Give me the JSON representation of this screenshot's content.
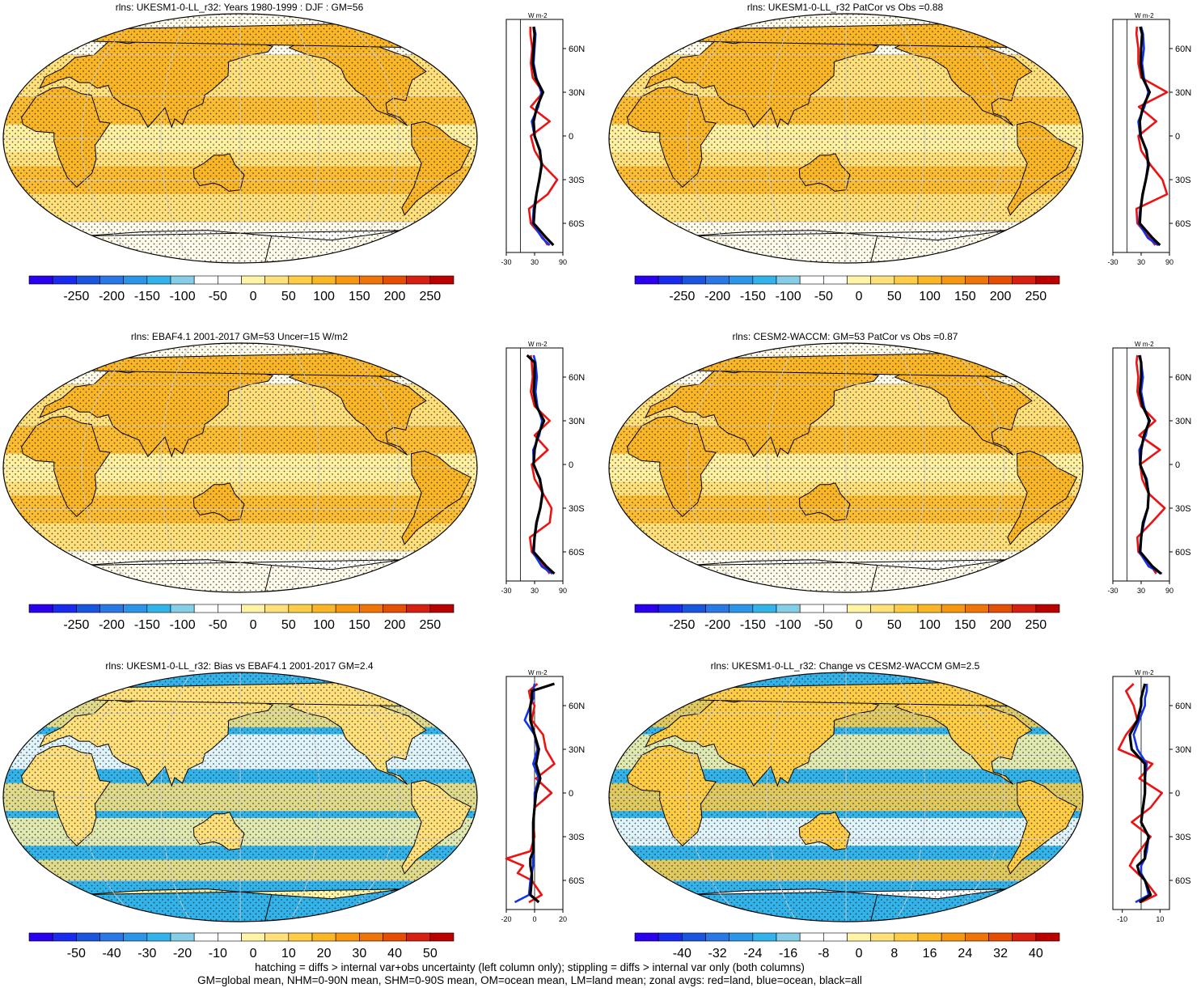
{
  "footer": {
    "line1": "hatching = diffs > internal var+obs uncertainty (left column only); stippling = diffs > internal var only (both columns)",
    "line2": "GM=global mean, NHM=0-90N mean, SHM=0-90S mean, OM=ocean mean, LM=land mean; zonal avgs: red=land, blue=ocean, black=all"
  },
  "colors": {
    "land": "#ee1111",
    "ocean": "#1133ee",
    "all": "#000000",
    "scale": [
      "#2a00ee",
      "#1a2aee",
      "#1955dd",
      "#2a78e6",
      "#2d95e8",
      "#32b3ea",
      "#86cde8",
      "#ffffff",
      "#ffffff",
      "#fff3a6",
      "#ffe07a",
      "#ffcd45",
      "#fbb626",
      "#f79710",
      "#f07408",
      "#e64e04",
      "#d82010",
      "#bb0000"
    ]
  },
  "chart_data": [
    {
      "type": "heatmap",
      "title": "rlns: UKESM1-0-LL_r32: Years 1980-1999 : DJF : GM=56",
      "colorbar_ticks": [
        "-250",
        "-200",
        "-150",
        "-100",
        "-50",
        "0",
        "50",
        "100",
        "150",
        "200",
        "250"
      ],
      "map_style": "clim",
      "profile": {
        "unit": "W m-2",
        "xlim": [
          -30,
          90
        ],
        "xticks": [
          "-30",
          "30",
          "90"
        ],
        "ylim": [
          -80,
          80
        ],
        "yticks": [
          "60N",
          "30N",
          "0",
          "30S",
          "60S"
        ],
        "lat": [
          -75,
          -70,
          -60,
          -50,
          -40,
          -30,
          -20,
          -10,
          0,
          10,
          20,
          30,
          40,
          50,
          60,
          70,
          75
        ],
        "series": [
          {
            "name": "land",
            "values": [
              58,
              48,
              22,
              18,
              58,
              78,
              48,
              30,
              22,
              62,
              22,
              48,
              26,
              22,
              25,
              21,
              21
            ]
          },
          {
            "name": "ocean",
            "values": [
              62,
              46,
              26,
              28,
              34,
              40,
              44,
              42,
              30,
              24,
              38,
              44,
              34,
              28,
              30,
              32,
              29
            ]
          },
          {
            "name": "all",
            "values": [
              70,
              55,
              28,
              30,
              34,
              40,
              45,
              41,
              30,
              28,
              35,
              48,
              32,
              26,
              28,
              30,
              28
            ]
          }
        ]
      }
    },
    {
      "type": "heatmap",
      "title": "rlns: UKESM1-0-LL_r32 PatCor vs Obs =0.88",
      "colorbar_ticks": [
        "-250",
        "-200",
        "-150",
        "-100",
        "-50",
        "0",
        "50",
        "100",
        "150",
        "200",
        "250"
      ],
      "map_style": "clim",
      "profile": {
        "unit": "W m-2",
        "xlim": [
          -30,
          90
        ],
        "xticks": [
          "-30",
          "30",
          "90"
        ],
        "ylim": [
          -80,
          80
        ],
        "yticks": [
          "60N",
          "30N",
          "0",
          "30S",
          "60S"
        ],
        "lat": [
          -75,
          -70,
          -60,
          -50,
          -40,
          -30,
          -20,
          -10,
          0,
          10,
          20,
          30,
          40,
          50,
          60,
          70,
          75
        ],
        "series": [
          {
            "name": "land",
            "values": [
              60,
              48,
              22,
              20,
              85,
              75,
              50,
              30,
              24,
              62,
              25,
              85,
              30,
              24,
              24,
              20,
              21
            ]
          },
          {
            "name": "ocean",
            "values": [
              66,
              44,
              25,
              28,
              34,
              40,
              44,
              42,
              28,
              24,
              37,
              45,
              36,
              32,
              36,
              34,
              30
            ]
          },
          {
            "name": "all",
            "values": [
              70,
              54,
              27,
              29,
              33,
              40,
              46,
              41,
              29,
              27,
              34,
              48,
              33,
              29,
              30,
              32,
              28
            ]
          }
        ]
      }
    },
    {
      "type": "heatmap",
      "title": "rlns: EBAF4.1 2001-2017 GM=53 Uncer=15 W/m2",
      "colorbar_ticks": [
        "-250",
        "-200",
        "-150",
        "-100",
        "-50",
        "0",
        "50",
        "100",
        "150",
        "200",
        "250"
      ],
      "map_style": "clim",
      "profile": {
        "unit": "W m-2",
        "xlim": [
          -30,
          90
        ],
        "xticks": [
          "-30",
          "30",
          "90"
        ],
        "ylim": [
          -80,
          80
        ],
        "yticks": [
          "60N",
          "30N",
          "0",
          "30S",
          "60S"
        ],
        "lat": [
          -75,
          -70,
          -60,
          -50,
          -40,
          -30,
          -20,
          -10,
          0,
          10,
          20,
          30,
          40,
          50,
          60,
          70,
          75
        ],
        "series": [
          {
            "name": "land",
            "values": [
              62,
              50,
              24,
              20,
              62,
              66,
              48,
              30,
              24,
              58,
              30,
              62,
              30,
              22,
              26,
              24,
              22
            ]
          },
          {
            "name": "ocean",
            "values": [
              68,
              45,
              26,
              30,
              35,
              42,
              46,
              42,
              28,
              27,
              40,
              46,
              36,
              32,
              35,
              32,
              28
            ]
          },
          {
            "name": "all",
            "values": [
              72,
              55,
              28,
              30,
              34,
              42,
              47,
              41,
              28,
              30,
              37,
              50,
              34,
              28,
              30,
              30,
              14
            ]
          }
        ]
      }
    },
    {
      "type": "heatmap",
      "title": "rlns: CESM2-WACCM: GM=53 PatCor vs Obs =0.87",
      "colorbar_ticks": [
        "-250",
        "-200",
        "-150",
        "-100",
        "-50",
        "0",
        "50",
        "100",
        "150",
        "200",
        "250"
      ],
      "map_style": "clim",
      "profile": {
        "unit": "W m-2",
        "xlim": [
          -30,
          90
        ],
        "xticks": [
          "-30",
          "30",
          "90"
        ],
        "ylim": [
          -80,
          80
        ],
        "yticks": [
          "60N",
          "30N",
          "0",
          "30S",
          "60S"
        ],
        "lat": [
          -75,
          -70,
          -60,
          -50,
          -40,
          -30,
          -20,
          -10,
          0,
          10,
          20,
          30,
          40,
          50,
          60,
          70,
          75
        ],
        "series": [
          {
            "name": "land",
            "values": [
              62,
              52,
              24,
              22,
              52,
              80,
              46,
              32,
              28,
              70,
              26,
              60,
              30,
              22,
              24,
              20,
              22
            ]
          },
          {
            "name": "ocean",
            "values": [
              74,
              46,
              26,
              30,
              36,
              44,
              46,
              42,
              28,
              26,
              40,
              46,
              36,
              30,
              34,
              30,
              28
            ]
          },
          {
            "name": "all",
            "values": [
              72,
              54,
              28,
              30,
              34,
              44,
              46,
              40,
              28,
              30,
              36,
              48,
              33,
              27,
              30,
              30,
              26
            ]
          }
        ]
      }
    },
    {
      "type": "heatmap",
      "title": "rlns: UKESM1-0-LL_r32: Bias vs EBAF4.1 2001-2017 GM=2.4",
      "colorbar_ticks": [
        "-50",
        "-40",
        "-30",
        "-20",
        "-10",
        "0",
        "10",
        "20",
        "30",
        "40",
        "50"
      ],
      "map_style": "bias",
      "profile": {
        "unit": "W m-2",
        "xlim": [
          -20,
          20
        ],
        "xticks": [
          "-20",
          "0",
          "20"
        ],
        "ylim": [
          -80,
          80
        ],
        "yticks": [
          "60N",
          "30N",
          "0",
          "30S",
          "60S"
        ],
        "lat": [
          -75,
          -70,
          -60,
          -55,
          -50,
          -45,
          -40,
          -30,
          -20,
          -10,
          0,
          10,
          20,
          30,
          40,
          50,
          60,
          65,
          70,
          75
        ],
        "series": [
          {
            "name": "land",
            "values": [
              -4,
              5,
              -2,
              -12,
              -8,
              -20,
              -3,
              0,
              -1,
              0,
              12,
              1,
              14,
              8,
              6,
              -2,
              0,
              -3,
              -4,
              2
            ]
          },
          {
            "name": "ocean",
            "values": [
              -14,
              -4,
              -3,
              -2,
              -1,
              -1,
              -1,
              -1,
              -1,
              0,
              0,
              3,
              -1,
              2,
              0,
              -7,
              -3,
              -1,
              -1,
              0
            ]
          },
          {
            "name": "all",
            "values": [
              3,
              -3,
              -2,
              -2,
              -3,
              -3,
              -1,
              -1,
              -1,
              0,
              1,
              4,
              1,
              3,
              0,
              -3,
              -3,
              -2,
              -2,
              14
            ]
          }
        ]
      }
    },
    {
      "type": "heatmap",
      "title": "rlns: UKESM1-0-LL_r32: Change vs CESM2-WACCM GM=2.5",
      "colorbar_ticks": [
        "-40",
        "-32",
        "-24",
        "-16",
        "-8",
        "0",
        "8",
        "16",
        "24",
        "32",
        "40"
      ],
      "map_style": "change",
      "profile": {
        "unit": "W m-2",
        "xlim": [
          -15,
          15
        ],
        "xticks": [
          "-10",
          "10"
        ],
        "ylim": [
          -80,
          80
        ],
        "yticks": [
          "60N",
          "30N",
          "0",
          "30S",
          "60S"
        ],
        "lat": [
          -75,
          -70,
          -60,
          -55,
          -50,
          -45,
          -40,
          -30,
          -20,
          -10,
          0,
          10,
          20,
          30,
          40,
          50,
          60,
          65,
          70,
          75
        ],
        "series": [
          {
            "name": "land",
            "values": [
              0,
              8,
              2,
              -2,
              -6,
              -4,
              -1,
              5,
              -5,
              5,
              11,
              -1,
              6,
              -12,
              -8,
              -2,
              -4,
              -6,
              -8,
              -4
            ],
            "x_end_note": ""
          },
          {
            "name": "ocean",
            "values": [
              -3,
              4,
              2,
              0,
              0,
              2,
              3,
              4,
              0,
              1,
              2,
              2,
              3,
              -2,
              -4,
              -1,
              2,
              2,
              3,
              3
            ]
          },
          {
            "name": "all",
            "values": [
              -1,
              5,
              2,
              -1,
              -2,
              2,
              2,
              4,
              0,
              1,
              2,
              2,
              2,
              -5,
              -6,
              -2,
              0,
              0,
              1,
              2
            ]
          }
        ]
      }
    }
  ]
}
